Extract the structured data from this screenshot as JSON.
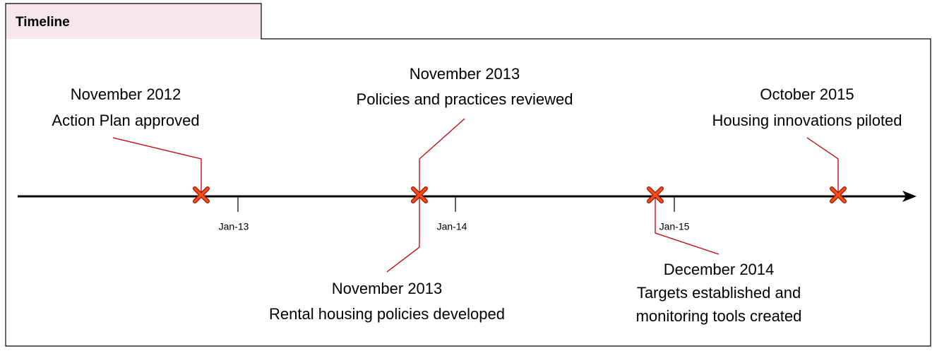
{
  "header": {
    "title": "Timeline"
  },
  "axis": {
    "ticks": [
      "Jan-13",
      "Jan-14",
      "Jan-15"
    ]
  },
  "events": [
    {
      "date": "November 2012",
      "lines": [
        "Action Plan approved"
      ]
    },
    {
      "date": "November 2013",
      "lines": [
        "Policies and practices reviewed"
      ]
    },
    {
      "date": "November 2013",
      "lines": [
        "Rental housing policies developed"
      ]
    },
    {
      "date": "December 2014",
      "lines": [
        "Targets established and",
        "monitoring tools created"
      ]
    },
    {
      "date": "October 2015",
      "lines": [
        "Housing innovations piloted"
      ]
    }
  ]
}
